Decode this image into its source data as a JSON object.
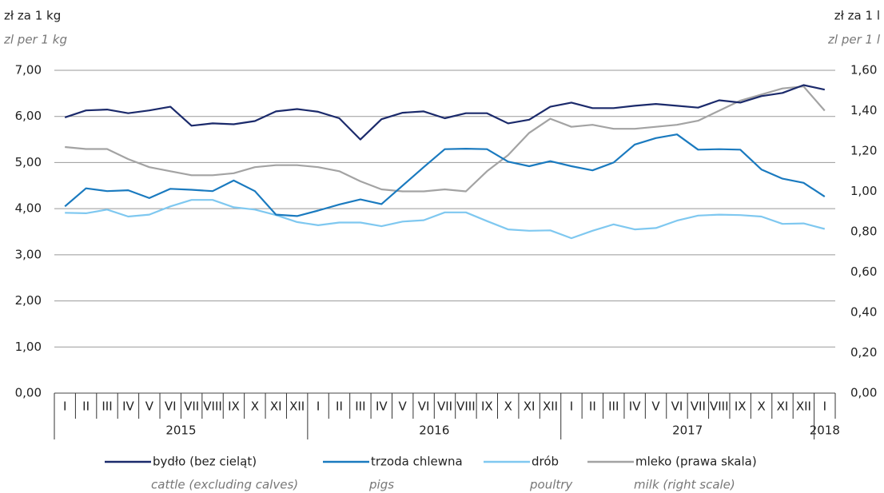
{
  "chart_data": {
    "type": "line",
    "y_label": "zł za 1 kg",
    "y_label_en": "zl per 1 kg",
    "y2_label": "zł za 1 l",
    "y2_label_en": "zl per 1 l",
    "categories": [
      "I",
      "II",
      "III",
      "IV",
      "V",
      "VI",
      "VII",
      "VIII",
      "IX",
      "X",
      "XI",
      "XII",
      "I",
      "II",
      "III",
      "IV",
      "V",
      "VI",
      "VII",
      "VIII",
      "IX",
      "X",
      "XI",
      "XII",
      "I",
      "II",
      "III",
      "IV",
      "V",
      "VI",
      "VII",
      "VIII",
      "IX",
      "X",
      "XI",
      "XII",
      "I"
    ],
    "years": [
      "2015",
      "2016",
      "2017",
      "2018"
    ],
    "ylim": [
      0,
      7
    ],
    "yticks": [
      {
        "value": 0,
        "label": "0,00"
      },
      {
        "value": 1,
        "label": "1,00"
      },
      {
        "value": 2,
        "label": "2,00"
      },
      {
        "value": 3,
        "label": "3,00"
      },
      {
        "value": 4,
        "label": "4,00"
      },
      {
        "value": 5,
        "label": "5,00"
      },
      {
        "value": 6,
        "label": "6,00"
      },
      {
        "value": 7,
        "label": "7,00"
      }
    ],
    "y2lim": [
      0,
      1.6
    ],
    "y2ticks": [
      {
        "value": 0,
        "label": "0,00"
      },
      {
        "value": 0.2,
        "label": "0,20"
      },
      {
        "value": 0.4,
        "label": "0,40"
      },
      {
        "value": 0.6,
        "label": "0,60"
      },
      {
        "value": 0.8,
        "label": "0,80"
      },
      {
        "value": 1,
        "label": "1,00"
      },
      {
        "value": 1.2,
        "label": "1,20"
      },
      {
        "value": 1.4,
        "label": "1,40"
      },
      {
        "value": 1.6,
        "label": "1,60"
      }
    ],
    "grid": true,
    "series": [
      {
        "name": "bydło (bez cieląt)",
        "name_en": "cattle (excluding calves)",
        "color": "#1b2a6b",
        "values": [
          5.98,
          6.13,
          6.15,
          6.07,
          6.13,
          6.21,
          5.8,
          5.85,
          5.83,
          5.9,
          6.11,
          6.16,
          6.1,
          5.96,
          5.5,
          5.94,
          6.08,
          6.11,
          5.96,
          6.07,
          6.07,
          5.85,
          5.93,
          6.21,
          6.3,
          6.18,
          6.18,
          6.23,
          6.27,
          6.23,
          6.19,
          6.35,
          6.3,
          6.44,
          6.51,
          6.68,
          6.58
        ]
      },
      {
        "name": "trzoda chlewna",
        "name_en": "pigs",
        "color": "#1a7abf",
        "values": [
          4.05,
          4.44,
          4.38,
          4.4,
          4.23,
          4.43,
          4.41,
          4.38,
          4.61,
          4.38,
          3.87,
          3.84,
          3.96,
          4.09,
          4.2,
          4.1,
          4.5,
          4.9,
          5.29,
          5.3,
          5.29,
          5.02,
          4.92,
          5.03,
          4.92,
          4.83,
          5.0,
          5.39,
          5.53,
          5.61,
          5.28,
          5.29,
          5.28,
          4.85,
          4.65,
          4.56,
          4.26
        ]
      },
      {
        "name": "drób",
        "name_en": "poultry",
        "color": "#7fc8f0",
        "values": [
          3.91,
          3.9,
          3.98,
          3.83,
          3.87,
          4.05,
          4.19,
          4.19,
          4.03,
          3.98,
          3.86,
          3.71,
          3.64,
          3.7,
          3.7,
          3.62,
          3.72,
          3.75,
          3.92,
          3.92,
          3.73,
          3.55,
          3.52,
          3.53,
          3.36,
          3.52,
          3.66,
          3.55,
          3.58,
          3.74,
          3.85,
          3.87,
          3.86,
          3.83,
          3.67,
          3.68,
          3.56
        ]
      },
      {
        "name": "mleko (prawa skala)",
        "name_en": "milk (right scale)",
        "color": "#a3a3a3",
        "axis": "y2",
        "values": [
          1.22,
          1.21,
          1.21,
          1.16,
          1.12,
          1.1,
          1.08,
          1.08,
          1.09,
          1.12,
          1.13,
          1.13,
          1.12,
          1.1,
          1.05,
          1.01,
          1.0,
          1.0,
          1.01,
          1.0,
          1.1,
          1.18,
          1.29,
          1.36,
          1.32,
          1.33,
          1.31,
          1.31,
          1.32,
          1.33,
          1.35,
          1.4,
          1.45,
          1.48,
          1.51,
          1.52,
          1.4
        ]
      }
    ]
  }
}
